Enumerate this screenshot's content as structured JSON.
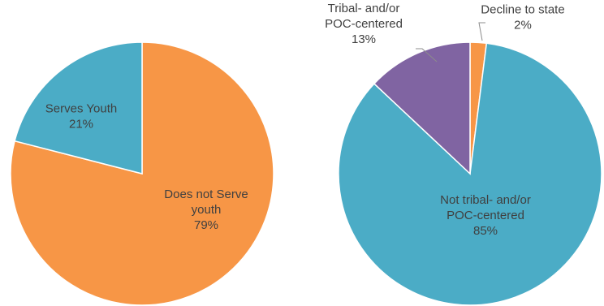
{
  "chart_data": [
    {
      "type": "pie",
      "slices": [
        {
          "label": [
            "Does not Serve",
            "youth"
          ],
          "value": 79,
          "percent_label": "79%",
          "color": "#F79646"
        },
        {
          "label": [
            "Serves Youth"
          ],
          "value": 21,
          "percent_label": "21%",
          "color": "#4BACC6"
        }
      ]
    },
    {
      "type": "pie",
      "slices": [
        {
          "label": [
            "Decline to state"
          ],
          "value": 2,
          "percent_label": "2%",
          "color": "#F79646"
        },
        {
          "label": [
            "Not tribal- and/or",
            "POC-centered"
          ],
          "value": 85,
          "percent_label": "85%",
          "color": "#4BACC6"
        },
        {
          "label": [
            "Tribal- and/or",
            "POC-centered"
          ],
          "value": 13,
          "percent_label": "13%",
          "color": "#8064A2"
        }
      ]
    }
  ]
}
